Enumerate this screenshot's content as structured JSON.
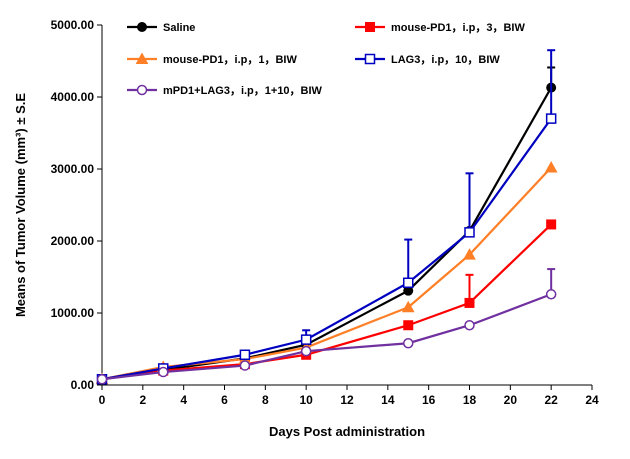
{
  "chart_data": {
    "type": "line",
    "xlabel": "Days Post administration",
    "ylabel": "Means of Tumor Volume (mm³) ± S.E",
    "xlim": [
      0,
      24
    ],
    "ylim": [
      0,
      5000
    ],
    "xticks": [
      0,
      2,
      4,
      6,
      8,
      10,
      12,
      14,
      16,
      18,
      20,
      22,
      24
    ],
    "yticks": [
      "0.00",
      "1000.00",
      "2000.00",
      "3000.00",
      "4000.00",
      "5000.00"
    ],
    "grid": false,
    "legend_position": "top, inside plot, two columns",
    "x": [
      0,
      3,
      7,
      10,
      15,
      18,
      22
    ],
    "series": [
      {
        "name": "Saline",
        "color": "#000000",
        "marker": "filled-circle",
        "values": [
          80,
          210,
          370,
          560,
          1310,
          2140,
          4130
        ],
        "errors": [
          0,
          0,
          0,
          0,
          0,
          0,
          280
        ]
      },
      {
        "name": "mouse-PD1，i.p，3，BIW",
        "color": "#ff0000",
        "marker": "filled-square",
        "values": [
          80,
          200,
          290,
          420,
          830,
          1140,
          2230
        ],
        "errors": [
          0,
          0,
          0,
          0,
          0,
          390,
          0
        ]
      },
      {
        "name": "mouse-PD1，i.p，1，BIW",
        "color": "#ff7f27",
        "marker": "filled-triangle",
        "values": [
          80,
          250,
          360,
          520,
          1080,
          1810,
          3020
        ],
        "errors": [
          0,
          0,
          0,
          0,
          0,
          0,
          0
        ]
      },
      {
        "name": "LAG3，i.p，10，BIW",
        "color": "#0000c0",
        "marker": "open-square",
        "values": [
          80,
          230,
          420,
          630,
          1420,
          2120,
          3700
        ],
        "errors": [
          0,
          0,
          40,
          130,
          600,
          820,
          950
        ]
      },
      {
        "name": "mPD1+LAG3，i.p，1+10，BIW",
        "color": "#7030a0",
        "marker": "open-circle",
        "values": [
          80,
          180,
          270,
          470,
          580,
          830,
          1260
        ],
        "errors": [
          0,
          0,
          0,
          0,
          0,
          0,
          350
        ]
      }
    ]
  }
}
